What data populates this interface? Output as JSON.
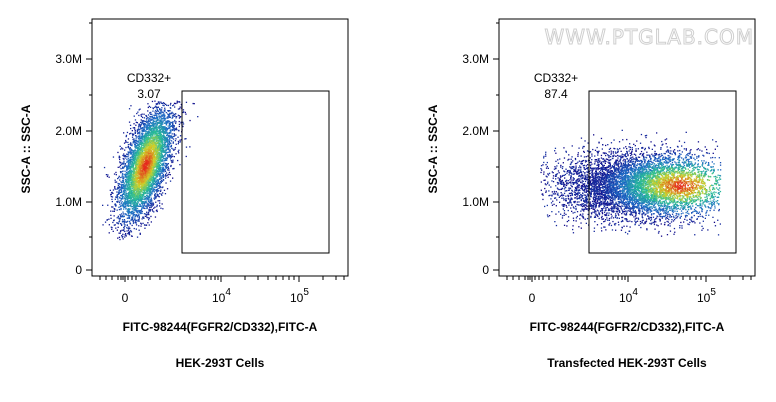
{
  "watermark": "WWW.PTGLAB.COM",
  "chart_data": [
    {
      "type": "scatter",
      "title": "HEK-293T Cells",
      "xlabel": "FITC-98244(FGFR2/CD332),FITC-A",
      "ylabel": "SSC-A :: SSC-A",
      "x_scale": "biexponential",
      "x_ticks": [
        {
          "value": "0",
          "label": "0"
        },
        {
          "value": "1e4",
          "label": "10",
          "exp": "4"
        },
        {
          "value": "1e5",
          "label": "10",
          "exp": "5"
        }
      ],
      "y_ticks": [
        "0",
        "1.0M",
        "2.0M",
        "3.0M"
      ],
      "ylim": [
        0,
        3500000
      ],
      "gate": {
        "name": "CD332+",
        "percent": "3.07"
      },
      "population": {
        "description_values": "dense cluster near x=0..2e3, SSC 0.6M-2.0M",
        "x_center_log": 3.1,
        "y_center": 1400000
      }
    },
    {
      "type": "scatter",
      "title": "Transfected HEK-293T Cells",
      "xlabel": "FITC-98244(FGFR2/CD332),FITC-A",
      "ylabel": "SSC-A :: SSC-A",
      "x_scale": "biexponential",
      "x_ticks": [
        {
          "value": "0",
          "label": "0"
        },
        {
          "value": "1e4",
          "label": "10",
          "exp": "4"
        },
        {
          "value": "1e5",
          "label": "10",
          "exp": "5"
        }
      ],
      "y_ticks": [
        "0",
        "1.0M",
        "2.0M",
        "3.0M"
      ],
      "ylim": [
        0,
        3500000
      ],
      "gate": {
        "name": "CD332+",
        "percent": "87.4"
      },
      "population": {
        "x_center_log": 4.6,
        "y_center": 1200000
      }
    }
  ]
}
